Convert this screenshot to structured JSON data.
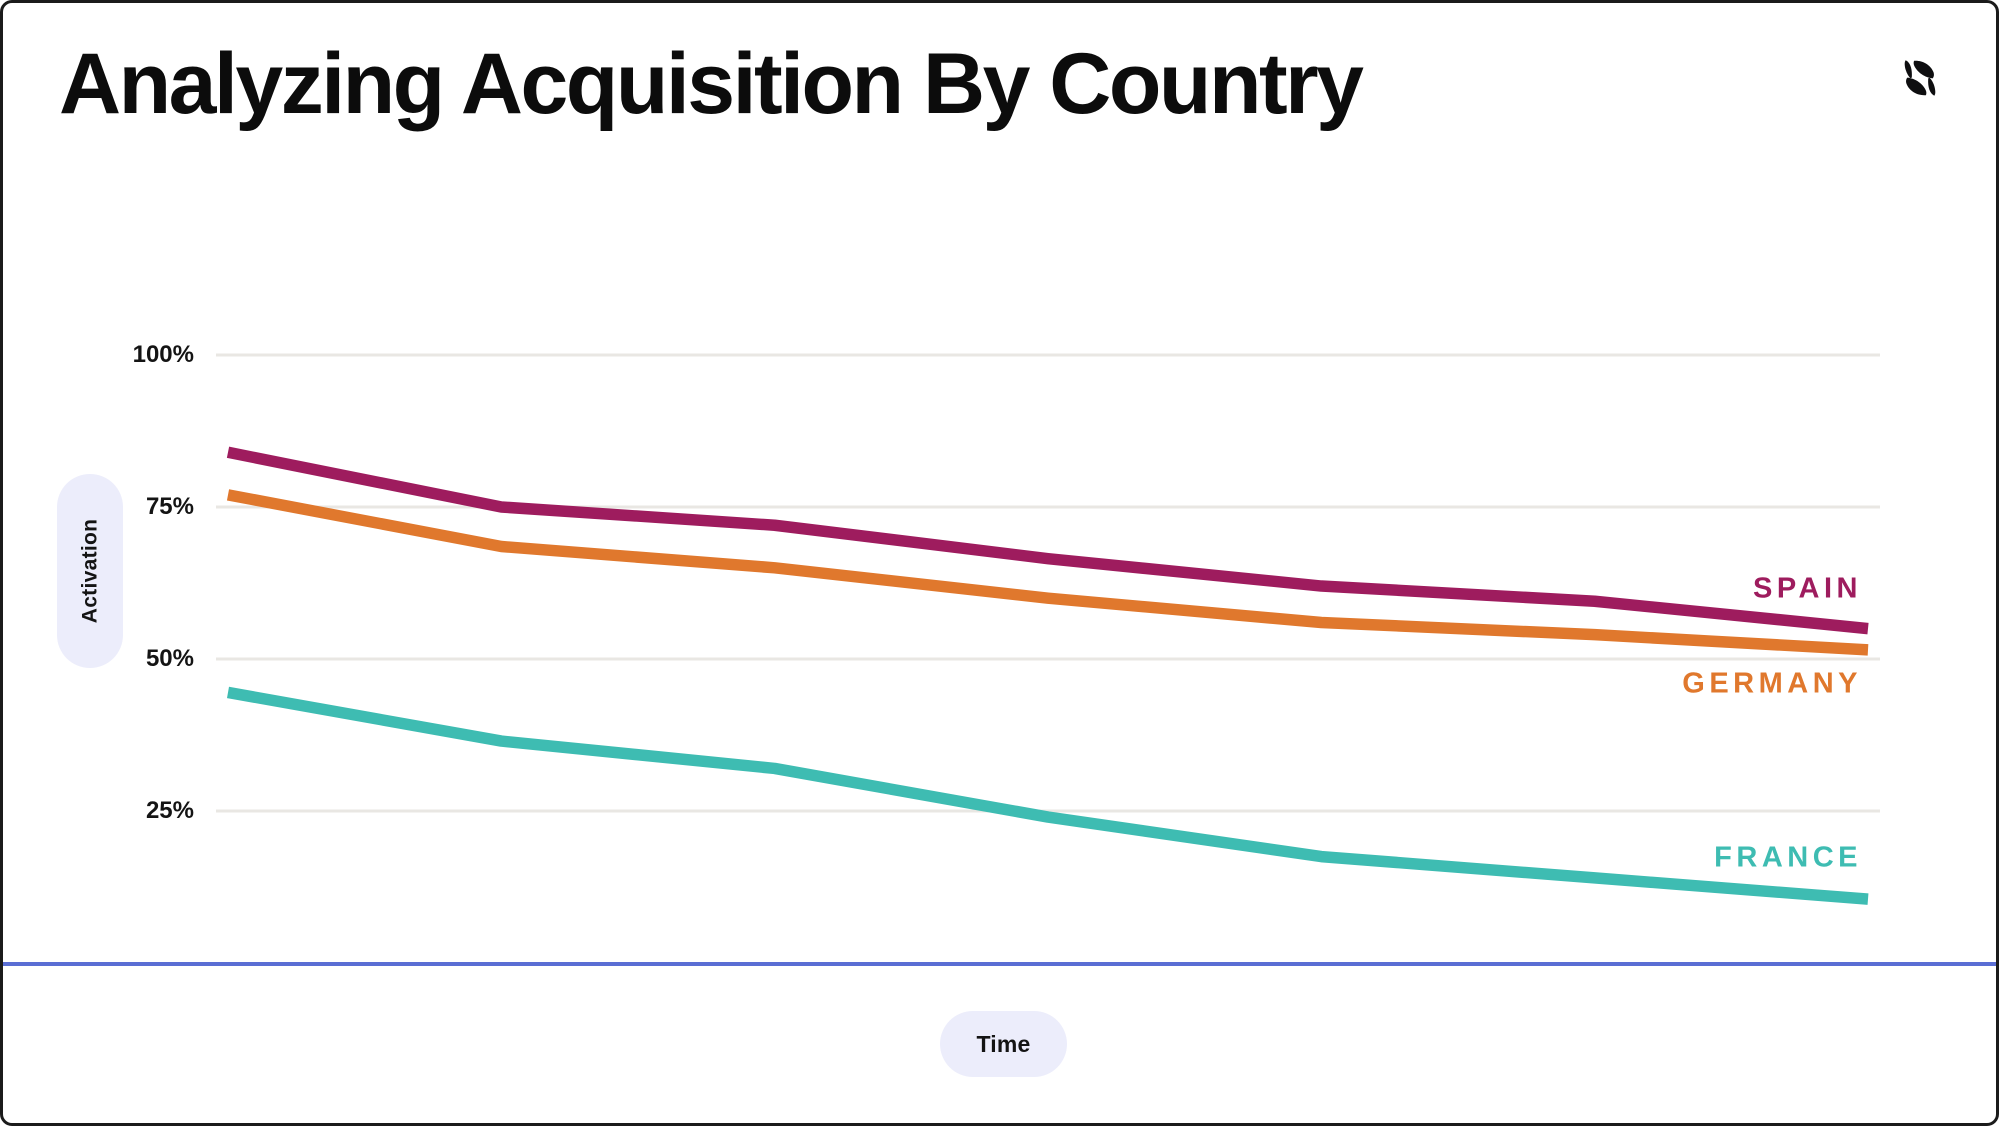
{
  "page": {
    "title": "Analyzing Acquisition By Country"
  },
  "chart_data": {
    "type": "line",
    "title": "Analyzing Acquisition By Country",
    "xlabel": "Time",
    "ylabel": "Activation",
    "x": [
      0,
      1,
      2,
      3,
      4,
      5,
      6
    ],
    "ylim": [
      0,
      100
    ],
    "grid": true,
    "legend_position": "end-of-line-labels",
    "yticks": [
      {
        "value": 100,
        "label": "100%"
      },
      {
        "value": 75,
        "label": "75%"
      },
      {
        "value": 50,
        "label": "50%"
      },
      {
        "value": 25,
        "label": "25%"
      }
    ],
    "series": [
      {
        "name": "SPAIN",
        "color": "#9E1C5E",
        "values": [
          84,
          75,
          72,
          66.5,
          62,
          59.5,
          55
        ]
      },
      {
        "name": "GERMANY",
        "color": "#E0782D",
        "values": [
          77,
          68.5,
          65,
          60,
          56,
          54,
          51.5
        ]
      },
      {
        "name": "FRANCE",
        "color": "#3EBCB2",
        "values": [
          44.5,
          36.5,
          32,
          24,
          17.5,
          14,
          10.5
        ]
      }
    ]
  },
  "colors": {
    "background": "#FFFFFF",
    "frame_border": "#1B1B1B",
    "gridline": "#E9E7E3",
    "axis_chip_bg": "#ECEDFB",
    "divider_blue": "#5A6ED4",
    "text": "#141414",
    "logo": "#0E0E10"
  }
}
